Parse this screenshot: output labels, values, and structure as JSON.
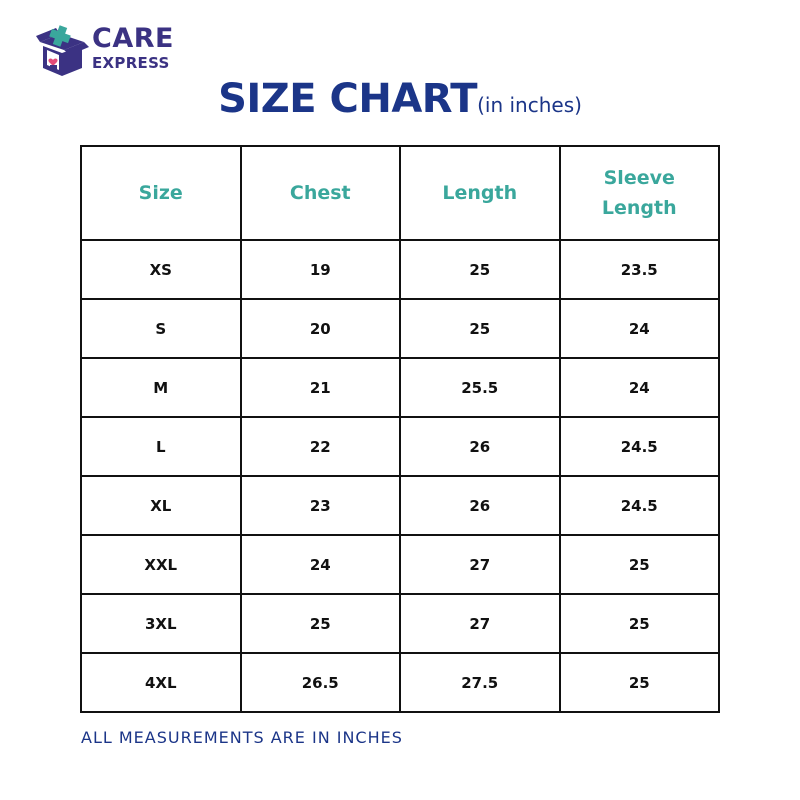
{
  "brand": {
    "line1": "CARE",
    "line2": "EXPRESS",
    "logo_icon": "box-with-heart-and-cross-icon",
    "colors": {
      "primary": "#3b3283",
      "accent_teal": "#3aa79c",
      "accent_pink": "#e34b79"
    }
  },
  "heading": {
    "title": "SIZE CHART",
    "subtitle": "(in inches)",
    "color": "#1b3588"
  },
  "table": {
    "header_color": "#3aa79c",
    "columns": [
      "Size",
      "Chest",
      "Length",
      "Sleeve Length"
    ],
    "rows": [
      [
        "XS",
        "19",
        "25",
        "23.5"
      ],
      [
        "S",
        "20",
        "25",
        "24"
      ],
      [
        "M",
        "21",
        "25.5",
        "24"
      ],
      [
        "L",
        "22",
        "26",
        "24.5"
      ],
      [
        "XL",
        "23",
        "26",
        "24.5"
      ],
      [
        "XXL",
        "24",
        "27",
        "25"
      ],
      [
        "3XL",
        "25",
        "27",
        "25"
      ],
      [
        "4XL",
        "26.5",
        "27.5",
        "25"
      ]
    ]
  },
  "footer": {
    "note": "ALL MEASUREMENTS ARE IN INCHES"
  }
}
